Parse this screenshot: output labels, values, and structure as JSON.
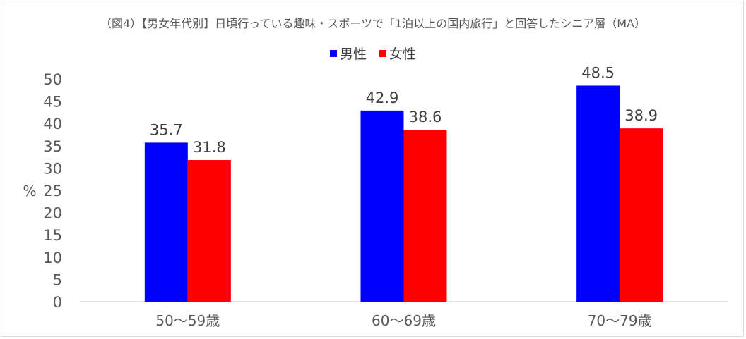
{
  "chart_data": {
    "type": "bar",
    "title": "（図4）【男女年代別】日頃行っている趣味・スポーツで「1泊以上の国内旅行」と回答したシニア層（MA）",
    "categories": [
      "50～59歳",
      "60～69歳",
      "70～79歳"
    ],
    "series": [
      {
        "name": "男性",
        "color": "#0000ff",
        "values": [
          35.7,
          42.9,
          48.5
        ]
      },
      {
        "name": "女性",
        "color": "#ff0000",
        "values": [
          31.8,
          38.6,
          38.9
        ]
      }
    ],
    "ylabel": "%",
    "ylim": [
      0,
      50
    ],
    "yticks": [
      0,
      5,
      10,
      15,
      20,
      25,
      30,
      35,
      40,
      45,
      50
    ],
    "legend_position": "top",
    "grid": false,
    "data_labels": true
  }
}
